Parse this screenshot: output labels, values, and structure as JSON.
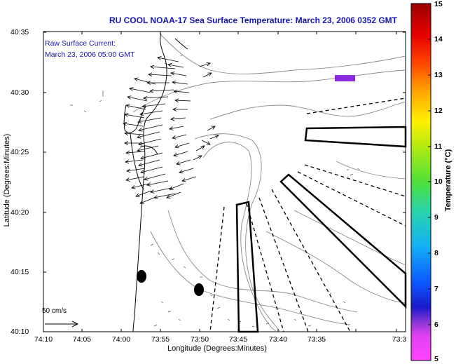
{
  "title": "RU COOL  NOAA-17  Sea Surface Temperature:  March 23, 2006 0352 GMT",
  "annotation": {
    "line1": "Raw Surface Current:",
    "line2": "March 23, 2006 05:00 GMT"
  },
  "scale_label": "50 cm/s",
  "axes": {
    "xlabel": "Longitude (Degrees:Minutes)",
    "ylabel": "Latitude (Degrees:Minutes)",
    "xticks": [
      "74:10",
      "74:05",
      "74:00",
      "73:55",
      "73:50",
      "73:45",
      "73:40",
      "73:35",
      "73:3"
    ],
    "yticks": [
      "40:35",
      "40:30",
      "40:25",
      "40:20",
      "40:15",
      "40:10"
    ]
  },
  "colorbar": {
    "label": "Temperature (°C)",
    "ticks": [
      "15",
      "14",
      "13",
      "12",
      "11",
      "10",
      "9",
      "8",
      "7",
      "6",
      "5"
    ],
    "colors": [
      "#ff44ff",
      "#b036d8",
      "#1a1acc",
      "#0a5aff",
      "#15aff5",
      "#2ad4aa",
      "#4ee03a",
      "#b4ea10",
      "#fff000",
      "#ffa800",
      "#ff4a00",
      "#e80000",
      "#9a0000"
    ]
  },
  "colors": {
    "title": "#1414b4",
    "annotation": "#1414b4",
    "marker": "#8a2be2",
    "coastline": "#000000",
    "bathymetry": "#888888"
  }
}
